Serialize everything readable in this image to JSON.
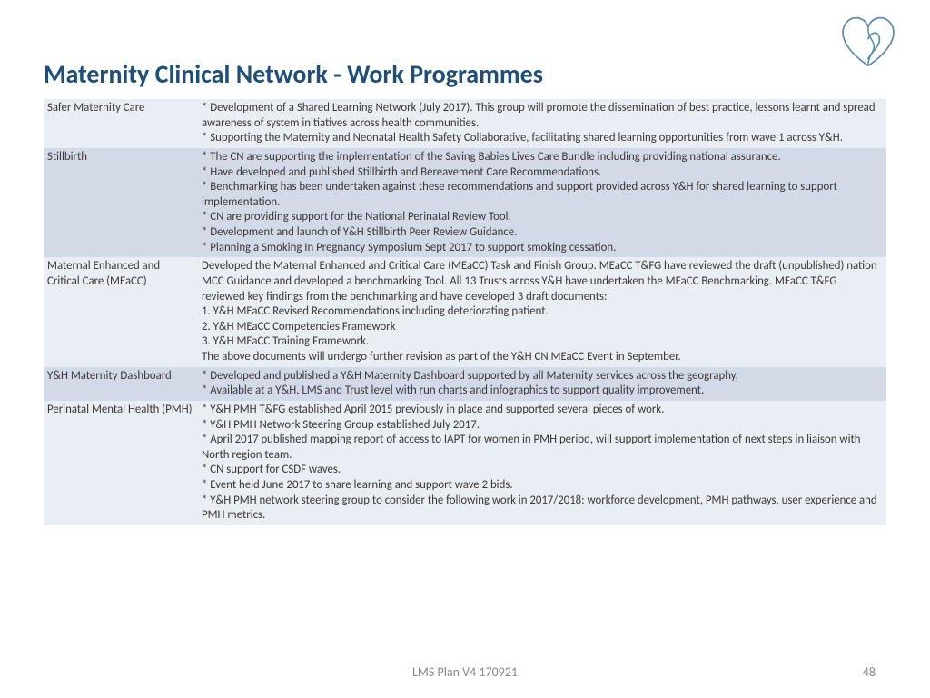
{
  "title": "Maternity Clinical Network - Work Programmes",
  "title_color": "#1f4e79",
  "row_bg_odd": "#e9edf4",
  "row_bg_even": "#d2dae8",
  "text_color": "#3b3838",
  "footer_color": "#898989",
  "logo_stroke": "#5a8bb0",
  "rows": [
    {
      "label": "Safer Maternity Care",
      "content": "* Development of a Shared Learning Network (July 2017). This group will promote the dissemination of best practice, lessons learnt and spread awareness of system initiatives across health communities.\n* Supporting the Maternity and Neonatal Health Safety Collaborative, facilitating shared learning opportunities from wave 1 across Y&H."
    },
    {
      "label": "Stillbirth",
      "content": "* The CN are supporting the implementation of the Saving Babies Lives Care Bundle including providing national assurance.\n* Have developed and published Stillbirth and Bereavement Care Recommendations.\n* Benchmarking has been undertaken against these recommendations and support provided across Y&H for shared learning to support implementation.\n* CN are providing support for the National Perinatal Review Tool.\n* Development and launch of Y&H Stillbirth Peer Review Guidance.\n* Planning a Smoking In Pregnancy Symposium Sept 2017 to support smoking cessation."
    },
    {
      "label": "Maternal Enhanced and Critical Care (MEaCC)",
      "content": "Developed the Maternal Enhanced and Critical Care (MEaCC) Task and Finish Group.  MEaCC T&FG have reviewed the draft (unpublished) nation MCC Guidance and developed a benchmarking Tool.  All 13 Trusts across Y&H have undertaken the MEaCC Benchmarking.   MEaCC T&FG reviewed key findings from the benchmarking and have developed 3 draft documents:\n1. Y&H MEaCC Revised Recommendations including deteriorating patient.\n2. Y&H MEaCC Competencies Framework\n3. Y&H MEaCC Training Framework.\nThe above documents will undergo further revision as part of the Y&H CN MEaCC Event in September."
    },
    {
      "label": "Y&H Maternity Dashboard",
      "content": "* Developed and published a Y&H Maternity Dashboard supported by all Maternity services across the geography.\n* Available at a Y&H, LMS and Trust level with run charts and infographics to support quality improvement."
    },
    {
      "label": "Perinatal Mental Health (PMH)",
      "content": "* Y&H PMH T&FG established April 2015 previously in place and supported several pieces of work.\n* Y&H PMH Network Steering Group established July 2017.\n* April 2017 published  mapping report of access to IAPT for women in PMH period, will support implementation of next steps in liaison with North region team.\n* CN support for CSDF waves.\n* Event held June 2017 to share learning and support wave 2 bids.\n* Y&H PMH network steering group to consider the following work in 2017/2018: workforce development, PMH pathways, user experience and PMH metrics."
    }
  ],
  "footer": "LMS Plan V4 170921",
  "page_number": "48"
}
